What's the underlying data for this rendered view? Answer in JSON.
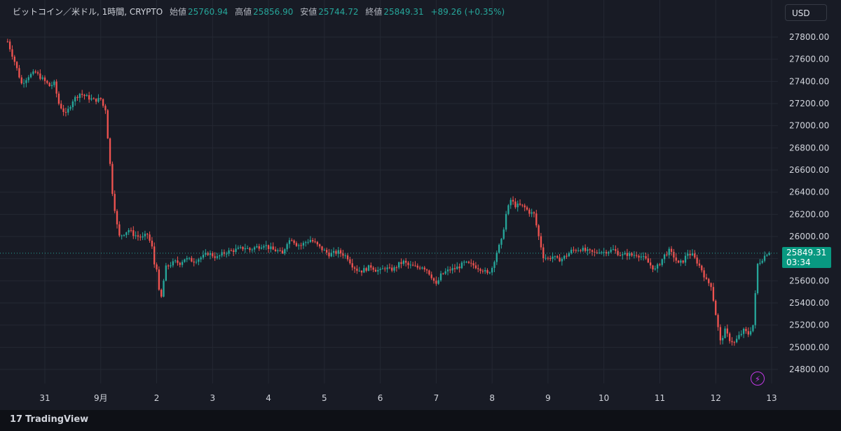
{
  "header": {
    "symbol": "ビットコイン／米ドル, 1時間, CRYPTO",
    "open_label": "始値",
    "open_value": "25760.94",
    "high_label": "高値",
    "high_value": "25856.90",
    "low_label": "安値",
    "low_value": "25744.72",
    "close_label": "終値",
    "close_value": "25849.31",
    "change": "+89.26 (+0.35%)"
  },
  "currency_button": "USD",
  "footer_brand": "TradingView",
  "footer_logo_mark": "17",
  "alert_icon": "lightning-icon",
  "current_price": {
    "price": "25849.31",
    "countdown": "03:34"
  },
  "colors": {
    "up": "#26a69a",
    "down": "#ef5350",
    "background": "#181b25",
    "grid": "#242833",
    "price_line": "#26a69a"
  },
  "chart_data": {
    "type": "candlestick",
    "title": "ビットコイン／米ドル, 1時間, CRYPTO",
    "ylim": [
      24700,
      27900
    ],
    "y_ticks": [
      24800,
      25000,
      25200,
      25400,
      25600,
      25800,
      26000,
      26200,
      26400,
      26600,
      26800,
      27000,
      27200,
      27400,
      27600,
      27800
    ],
    "y_tick_labels": [
      "24800.00",
      "25000.00",
      "25200.00",
      "25400.00",
      "25600.00",
      "25800.00",
      "26000.00",
      "26200.00",
      "26400.00",
      "26600.00",
      "26800.00",
      "27000.00",
      "27200.00",
      "27400.00",
      "27600.00",
      "27800.00"
    ],
    "x_ticks": [
      {
        "label": "31",
        "t": -24
      },
      {
        "label": "9月",
        "t": 0
      },
      {
        "label": "2",
        "t": 24
      },
      {
        "label": "3",
        "t": 48
      },
      {
        "label": "4",
        "t": 72
      },
      {
        "label": "5",
        "t": 96
      },
      {
        "label": "6",
        "t": 120
      },
      {
        "label": "7",
        "t": 144
      },
      {
        "label": "8",
        "t": 168
      },
      {
        "label": "9",
        "t": 192
      },
      {
        "label": "10",
        "t": 216
      },
      {
        "label": "11",
        "t": 240
      },
      {
        "label": "12",
        "t": 264
      },
      {
        "label": "13",
        "t": 288
      }
    ],
    "x_range": [
      -40,
      290
    ],
    "current_price": 25849.31,
    "close_path": [
      [
        -40,
        27760
      ],
      [
        -37,
        27580
      ],
      [
        -34,
        27380
      ],
      [
        -31,
        27450
      ],
      [
        -28,
        27480
      ],
      [
        -25,
        27420
      ],
      [
        -22,
        27360
      ],
      [
        -20,
        27380
      ],
      [
        -18,
        27200
      ],
      [
        -15,
        27100
      ],
      [
        -12,
        27230
      ],
      [
        -9,
        27290
      ],
      [
        -6,
        27260
      ],
      [
        -3,
        27230
      ],
      [
        0,
        27240
      ],
      [
        1,
        27180
      ],
      [
        2,
        27150
      ],
      [
        3,
        26900
      ],
      [
        4,
        26650
      ],
      [
        5,
        26400
      ],
      [
        6,
        26250
      ],
      [
        7,
        26100
      ],
      [
        8,
        26000
      ],
      [
        10,
        26030
      ],
      [
        12,
        26060
      ],
      [
        14,
        26020
      ],
      [
        16,
        26000
      ],
      [
        18,
        25990
      ],
      [
        20,
        26020
      ],
      [
        22,
        25900
      ],
      [
        23,
        25750
      ],
      [
        24,
        25720
      ],
      [
        25,
        25500
      ],
      [
        26,
        25450
      ],
      [
        27,
        25600
      ],
      [
        28,
        25720
      ],
      [
        30,
        25750
      ],
      [
        32,
        25770
      ],
      [
        34,
        25760
      ],
      [
        36,
        25800
      ],
      [
        38,
        25790
      ],
      [
        40,
        25780
      ],
      [
        42,
        25800
      ],
      [
        44,
        25820
      ],
      [
        46,
        25850
      ],
      [
        48,
        25830
      ],
      [
        50,
        25810
      ],
      [
        52,
        25840
      ],
      [
        54,
        25860
      ],
      [
        56,
        25870
      ],
      [
        58,
        25880
      ],
      [
        60,
        25890
      ],
      [
        62,
        25900
      ],
      [
        64,
        25880
      ],
      [
        66,
        25900
      ],
      [
        68,
        25910
      ],
      [
        70,
        25930
      ],
      [
        72,
        25900
      ],
      [
        74,
        25880
      ],
      [
        76,
        25870
      ],
      [
        78,
        25840
      ],
      [
        80,
        25950
      ],
      [
        82,
        25980
      ],
      [
        84,
        25930
      ],
      [
        86,
        25920
      ],
      [
        88,
        25950
      ],
      [
        90,
        25970
      ],
      [
        92,
        25940
      ],
      [
        94,
        25900
      ],
      [
        96,
        25870
      ],
      [
        98,
        25840
      ],
      [
        100,
        25850
      ],
      [
        102,
        25860
      ],
      [
        104,
        25840
      ],
      [
        106,
        25810
      ],
      [
        108,
        25740
      ],
      [
        110,
        25700
      ],
      [
        112,
        25690
      ],
      [
        114,
        25710
      ],
      [
        116,
        25730
      ],
      [
        118,
        25700
      ],
      [
        120,
        25690
      ],
      [
        122,
        25720
      ],
      [
        124,
        25700
      ],
      [
        126,
        25710
      ],
      [
        128,
        25750
      ],
      [
        130,
        25770
      ],
      [
        132,
        25740
      ],
      [
        134,
        25730
      ],
      [
        136,
        25720
      ],
      [
        138,
        25730
      ],
      [
        140,
        25700
      ],
      [
        142,
        25640
      ],
      [
        144,
        25560
      ],
      [
        146,
        25650
      ],
      [
        148,
        25680
      ],
      [
        150,
        25700
      ],
      [
        152,
        25710
      ],
      [
        154,
        25730
      ],
      [
        156,
        25760
      ],
      [
        158,
        25750
      ],
      [
        160,
        25740
      ],
      [
        162,
        25720
      ],
      [
        164,
        25700
      ],
      [
        166,
        25660
      ],
      [
        168,
        25720
      ],
      [
        170,
        25860
      ],
      [
        172,
        25960
      ],
      [
        174,
        26200
      ],
      [
        176,
        26330
      ],
      [
        178,
        26280
      ],
      [
        180,
        26280
      ],
      [
        182,
        26260
      ],
      [
        184,
        26220
      ],
      [
        186,
        26200
      ],
      [
        188,
        26000
      ],
      [
        190,
        25820
      ],
      [
        192,
        25800
      ],
      [
        194,
        25820
      ],
      [
        196,
        25790
      ],
      [
        198,
        25800
      ],
      [
        200,
        25830
      ],
      [
        202,
        25870
      ],
      [
        204,
        25880
      ],
      [
        206,
        25890
      ],
      [
        208,
        25870
      ],
      [
        210,
        25860
      ],
      [
        212,
        25850
      ],
      [
        214,
        25870
      ],
      [
        216,
        25860
      ],
      [
        218,
        25870
      ],
      [
        220,
        25880
      ],
      [
        222,
        25850
      ],
      [
        224,
        25830
      ],
      [
        226,
        25840
      ],
      [
        228,
        25830
      ],
      [
        230,
        25840
      ],
      [
        232,
        25820
      ],
      [
        234,
        25790
      ],
      [
        236,
        25740
      ],
      [
        238,
        25700
      ],
      [
        240,
        25760
      ],
      [
        242,
        25830
      ],
      [
        244,
        25870
      ],
      [
        246,
        25820
      ],
      [
        248,
        25750
      ],
      [
        250,
        25780
      ],
      [
        252,
        25850
      ],
      [
        254,
        25830
      ],
      [
        256,
        25770
      ],
      [
        258,
        25700
      ],
      [
        260,
        25600
      ],
      [
        262,
        25560
      ],
      [
        264,
        25300
      ],
      [
        266,
        25050
      ],
      [
        268,
        25150
      ],
      [
        270,
        25070
      ],
      [
        272,
        25040
      ],
      [
        274,
        25100
      ],
      [
        276,
        25150
      ],
      [
        278,
        25120
      ],
      [
        280,
        25200
      ],
      [
        282,
        25750
      ],
      [
        284,
        25800
      ],
      [
        286,
        25850
      ],
      [
        287,
        25849.31
      ]
    ]
  }
}
